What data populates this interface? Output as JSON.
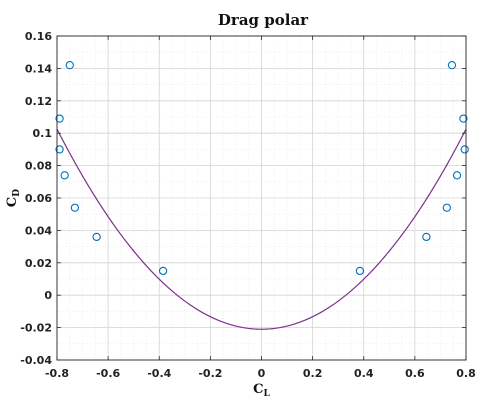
{
  "chart_data": {
    "type": "scatter",
    "title": "Drag polar",
    "xlabel": "C_L",
    "ylabel": "C_D",
    "xlim": [
      -0.8,
      0.8
    ],
    "ylim": [
      -0.04,
      0.16
    ],
    "xticks": [
      -0.8,
      -0.6,
      -0.4,
      -0.2,
      0,
      0.2,
      0.4,
      0.6,
      0.8
    ],
    "yticks": [
      -0.04,
      -0.02,
      0,
      0.02,
      0.04,
      0.06,
      0.08,
      0.1,
      0.12,
      0.14,
      0.16
    ],
    "xtick_labels": [
      "-0.8",
      "-0.6",
      "-0.4",
      "-0.2",
      "0",
      "0.2",
      "0.4",
      "0.6",
      "0.8"
    ],
    "ytick_labels": [
      "-0.04",
      "-0.02",
      "0",
      "0.02",
      "0.04",
      "0.06",
      "0.08",
      "0.1",
      "0.12",
      "0.14",
      "0.16"
    ],
    "grid": true,
    "minor_grid": true,
    "series": [
      {
        "kind": "markers",
        "marker": "circle",
        "color": "#0072BD",
        "x": [
          -0.79,
          -0.79,
          -0.75,
          -0.77,
          -0.73,
          -0.645,
          -0.385,
          0.385,
          0.645,
          0.725,
          0.765,
          0.79,
          0.795,
          0.745
        ],
        "y": [
          0.09,
          0.109,
          0.142,
          0.074,
          0.054,
          0.036,
          0.015,
          0.015,
          0.036,
          0.054,
          0.074,
          0.109,
          0.09,
          0.142
        ]
      },
      {
        "kind": "line",
        "color": "#7E2F8E",
        "fit": {
          "a": 0.193,
          "c": -0.021
        },
        "x_range": [
          -0.8,
          0.8
        ]
      }
    ]
  }
}
